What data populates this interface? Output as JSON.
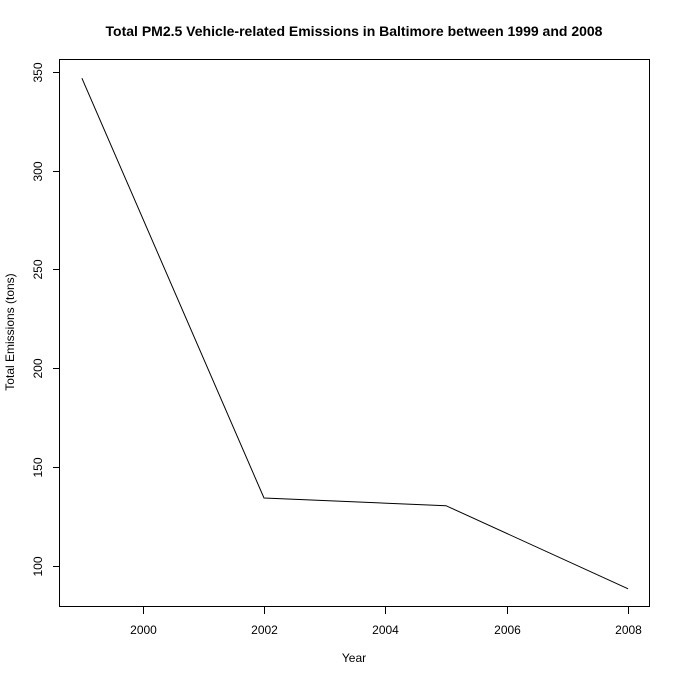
{
  "chart_data": {
    "type": "line",
    "title": "Total PM2.5 Vehicle-related Emissions in Baltimore between 1999 and 2008",
    "xlabel": "Year",
    "ylabel": "Total Emissions (tons)",
    "x": [
      1999,
      2002,
      2005,
      2008
    ],
    "series": [
      {
        "values": [
          346.8,
          134.3,
          130.4,
          88.3
        ]
      }
    ],
    "xlim": [
      1998.64,
      2008.36
    ],
    "ylim": [
      79.1,
      356.0
    ],
    "xticks": [
      2000,
      2002,
      2004,
      2006,
      2008
    ],
    "yticks": [
      100,
      150,
      200,
      250,
      300,
      350
    ],
    "xtick_labels": [
      "2000",
      "2002",
      "2004",
      "2006",
      "2008"
    ],
    "ytick_labels": [
      "100",
      "150",
      "200",
      "250",
      "300",
      "350"
    ],
    "grid": false,
    "legend": "none",
    "line_color": "#000000"
  }
}
